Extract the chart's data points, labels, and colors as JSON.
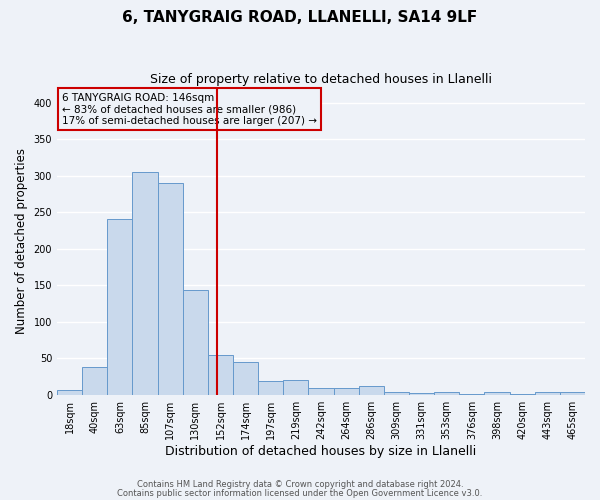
{
  "title": "6, TANYGRAIG ROAD, LLANELLI, SA14 9LF",
  "subtitle": "Size of property relative to detached houses in Llanelli",
  "xlabel": "Distribution of detached houses by size in Llanelli",
  "ylabel": "Number of detached properties",
  "categories": [
    "18sqm",
    "40sqm",
    "63sqm",
    "85sqm",
    "107sqm",
    "130sqm",
    "152sqm",
    "174sqm",
    "197sqm",
    "219sqm",
    "242sqm",
    "264sqm",
    "286sqm",
    "309sqm",
    "331sqm",
    "353sqm",
    "376sqm",
    "398sqm",
    "420sqm",
    "443sqm",
    "465sqm"
  ],
  "values": [
    7,
    38,
    240,
    305,
    290,
    143,
    55,
    45,
    19,
    20,
    9,
    9,
    12,
    4,
    3,
    4,
    1,
    4,
    1,
    4,
    4
  ],
  "bar_color": "#c9d9ec",
  "bar_edge_color": "#6699cc",
  "red_line_index": 5.85,
  "annotation_line1": "6 TANYGRAIG ROAD: 146sqm",
  "annotation_line2": "← 83% of detached houses are smaller (986)",
  "annotation_line3": "17% of semi-detached houses are larger (207) →",
  "annotation_box_color": "#cc0000",
  "red_line_color": "#cc0000",
  "ylim": [
    0,
    420
  ],
  "yticks": [
    0,
    50,
    100,
    150,
    200,
    250,
    300,
    350,
    400
  ],
  "footer1": "Contains HM Land Registry data © Crown copyright and database right 2024.",
  "footer2": "Contains public sector information licensed under the Open Government Licence v3.0.",
  "background_color": "#eef2f8",
  "plot_bg_color": "#eef2f8",
  "grid_color": "#ffffff",
  "title_fontsize": 11,
  "subtitle_fontsize": 9,
  "tick_fontsize": 7,
  "ylabel_fontsize": 8.5,
  "xlabel_fontsize": 9
}
